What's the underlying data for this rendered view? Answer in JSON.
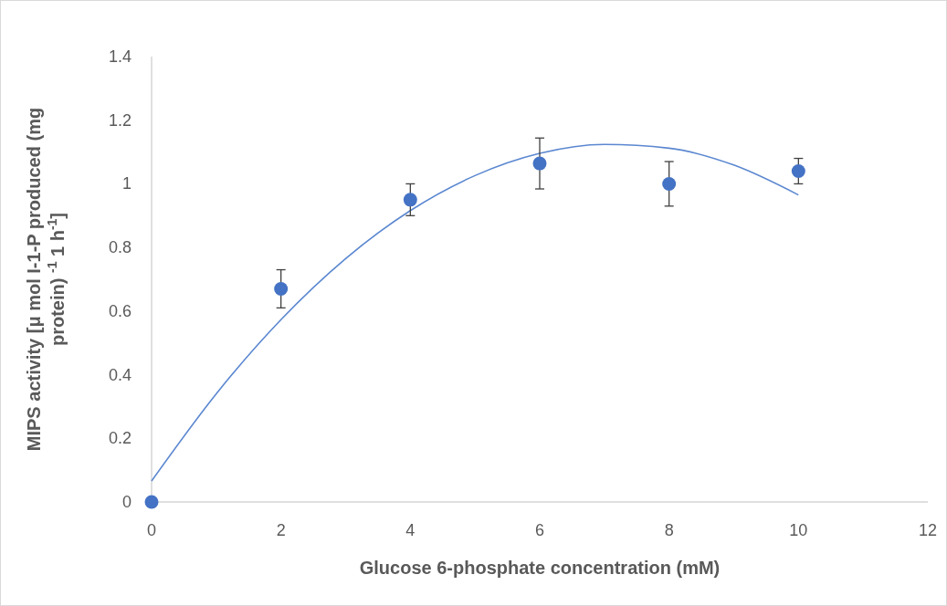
{
  "chart_data": {
    "type": "scatter",
    "xlabel": "Glucose 6-phosphate concentration (mM)",
    "ylabel": "MIPS activity [μ mol I-1-P produced (mg protein) $^{-1}$ 1 h$^{-1}$]",
    "xlim": [
      0,
      12
    ],
    "xticks": [
      0,
      2,
      4,
      6,
      8,
      10,
      12
    ],
    "ylim": [
      0,
      1.4
    ],
    "yticks": [
      0,
      0.2,
      0.4,
      0.6,
      0.8,
      1,
      1.2,
      1.4
    ],
    "grid": false,
    "series": [
      {
        "marker": "circle",
        "color": "#4472c4",
        "x": [
          0,
          2,
          4,
          6,
          8,
          10
        ],
        "values": [
          0,
          0.67,
          0.95,
          1.064,
          1.0,
          1.04
        ],
        "errors": [
          null,
          0.06,
          0.05,
          0.08,
          0.07,
          0.04
        ]
      },
      {
        "type": "line",
        "color": "#5b87d0",
        "x": [
          0,
          1,
          2,
          3,
          4,
          5,
          6,
          7,
          8,
          9,
          10
        ],
        "values": [
          0.066,
          0.34,
          0.573,
          0.765,
          0.916,
          1.026,
          1.096,
          1.124,
          1.112,
          1.059,
          0.965
        ]
      }
    ]
  }
}
